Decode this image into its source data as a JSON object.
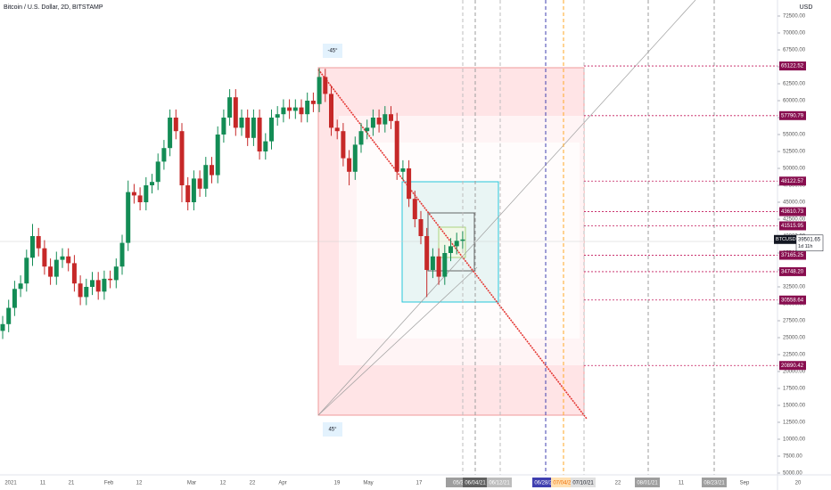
{
  "chart_data": {
    "type": "candlestick",
    "title": "Bitcoin / U.S. Dollar, 2D, BITSTAMP",
    "currency": "USD",
    "up_color": "#138c55",
    "down_color": "#c62828",
    "open": [
      26000,
      27000,
      29400,
      32200,
      33000,
      36800,
      40000,
      38200,
      35500,
      34000,
      36500,
      37000,
      36000,
      33000,
      31000,
      32500,
      33500,
      31800,
      33700,
      33500,
      35500,
      39000,
      46500,
      46000,
      45000,
      47500,
      48000,
      51000,
      53000,
      57500,
      55500,
      47500,
      45000,
      48500,
      47000,
      50500,
      49000,
      55000,
      57500,
      60500,
      56000,
      57500,
      54500,
      57500,
      52500,
      54000,
      57500,
      58000,
      59000,
      58500,
      59000,
      58000,
      60000,
      59500,
      63500,
      61000,
      56000,
      55500,
      51500,
      49500,
      53500,
      55500,
      56000,
      57500,
      56500,
      58000,
      57000,
      49500,
      50000,
      45500,
      42500,
      40000,
      35000,
      37000,
      34000,
      37500,
      38500,
      39300
    ],
    "high": [
      28200,
      30600,
      33400,
      34200,
      38000,
      41800,
      41200,
      39400,
      36700,
      37700,
      38200,
      38200,
      37200,
      34200,
      33700,
      34700,
      34700,
      34900,
      34900,
      36700,
      40200,
      48200,
      47700,
      47200,
      48700,
      49200,
      52200,
      54200,
      58700,
      58700,
      56700,
      48700,
      49700,
      49700,
      51700,
      51700,
      56200,
      58700,
      61700,
      61700,
      58700,
      58700,
      58700,
      58700,
      55200,
      58700,
      59200,
      60200,
      60200,
      60200,
      60200,
      61200,
      61200,
      64800,
      64700,
      62200,
      57200,
      56700,
      52700,
      54700,
      56700,
      57200,
      58700,
      58700,
      59200,
      59200,
      58200,
      51200,
      51200,
      46700,
      43700,
      41200,
      38200,
      38200,
      38700,
      39700,
      40500,
      40700
    ],
    "low": [
      24800,
      25800,
      28200,
      31000,
      31800,
      35600,
      37000,
      34300,
      32800,
      32800,
      35300,
      34800,
      31800,
      29800,
      29800,
      31300,
      30600,
      30600,
      32300,
      32300,
      34300,
      37800,
      44800,
      43800,
      43800,
      46300,
      46800,
      49800,
      51800,
      54300,
      45000,
      43800,
      43800,
      45800,
      45800,
      47800,
      47800,
      53800,
      56300,
      54800,
      54800,
      53300,
      53300,
      51300,
      51300,
      52800,
      56300,
      56800,
      57300,
      57300,
      56800,
      56800,
      58300,
      58300,
      59800,
      54800,
      54300,
      50300,
      47500,
      48300,
      52300,
      54300,
      54800,
      55300,
      55300,
      55800,
      48300,
      48300,
      44300,
      41300,
      38800,
      31000,
      33800,
      32800,
      32800,
      36300,
      37300,
      38100
    ],
    "close": [
      27000,
      29400,
      32200,
      33000,
      36800,
      40000,
      38200,
      35500,
      34000,
      36500,
      37000,
      36000,
      33000,
      31000,
      32500,
      33500,
      31800,
      33700,
      33500,
      35500,
      39000,
      46500,
      46000,
      45000,
      47500,
      48000,
      51000,
      53000,
      57500,
      55500,
      47500,
      45000,
      48500,
      47000,
      50500,
      49000,
      55000,
      57500,
      60500,
      56000,
      57500,
      54500,
      57500,
      52500,
      54000,
      57500,
      58000,
      59000,
      58500,
      59000,
      58000,
      60000,
      59500,
      63500,
      61000,
      56000,
      55500,
      51500,
      49500,
      53500,
      55500,
      56000,
      57500,
      56500,
      58000,
      57000,
      49500,
      50000,
      45500,
      42500,
      40000,
      35000,
      37000,
      34000,
      37500,
      38500,
      39300,
      39500
    ],
    "ylim": [
      4737,
      74868
    ],
    "yticks": [
      {
        "value": 5000,
        "label": "5000.00"
      },
      {
        "value": 7500,
        "label": "7500.00"
      },
      {
        "value": 10000,
        "label": "10000.00"
      },
      {
        "value": 12500,
        "label": "12500.00"
      },
      {
        "value": 15000,
        "label": "15000.00"
      },
      {
        "value": 17500,
        "label": "17500.00"
      },
      {
        "value": 20000,
        "label": "20000.00"
      },
      {
        "value": 22500,
        "label": "22500.00"
      },
      {
        "value": 25000,
        "label": "25000.00"
      },
      {
        "value": 27500,
        "label": "27500.00"
      },
      {
        "value": 30000,
        "label": "30000.00"
      },
      {
        "value": 32500,
        "label": "32500.00"
      },
      {
        "value": 35000,
        "label": "35000.00"
      },
      {
        "value": 37500,
        "label": "37500.00"
      },
      {
        "value": 40000,
        "label": "40000.00"
      },
      {
        "value": 42500,
        "label": "42500.00"
      },
      {
        "value": 45000,
        "label": "45000.00"
      },
      {
        "value": 47500,
        "label": "47500.00"
      },
      {
        "value": 50000,
        "label": "50000.00"
      },
      {
        "value": 52500,
        "label": "52500.00"
      },
      {
        "value": 55000,
        "label": "55000.00"
      },
      {
        "value": 57500,
        "label": "57500.00"
      },
      {
        "value": 60000,
        "label": "60000.00"
      },
      {
        "value": 62500,
        "label": "62500.00"
      },
      {
        "value": 65000,
        "label": "65000.00"
      },
      {
        "value": 67500,
        "label": "67500.00"
      },
      {
        "value": 70000,
        "label": "70000.00"
      },
      {
        "value": 72500,
        "label": "72500.00"
      }
    ],
    "price_tags": [
      65122.52,
      57790.79,
      48122.57,
      43610.73,
      41515.95,
      37165.25,
      {
        "value": 34748.2,
        "label": "34748.20"
      },
      30558.64,
      20890.42
    ],
    "last_price_symbol": "BTCUSD",
    "last_price": 39501.65,
    "countdown": "1d 11h",
    "angle_labels": [
      "-45°",
      "45°"
    ],
    "x_axis_labels": [
      "2021",
      "11",
      "21",
      "Feb",
      "12",
      "Mar",
      "12",
      "22",
      "Apr",
      "19",
      "May",
      "17",
      "05/3",
      "06/04/21",
      "06/12/21",
      "06/28/21",
      "07/04/21",
      "07/10/21",
      "22",
      "08/01/21",
      "11",
      "08/23/21",
      "Sep",
      "20"
    ]
  }
}
